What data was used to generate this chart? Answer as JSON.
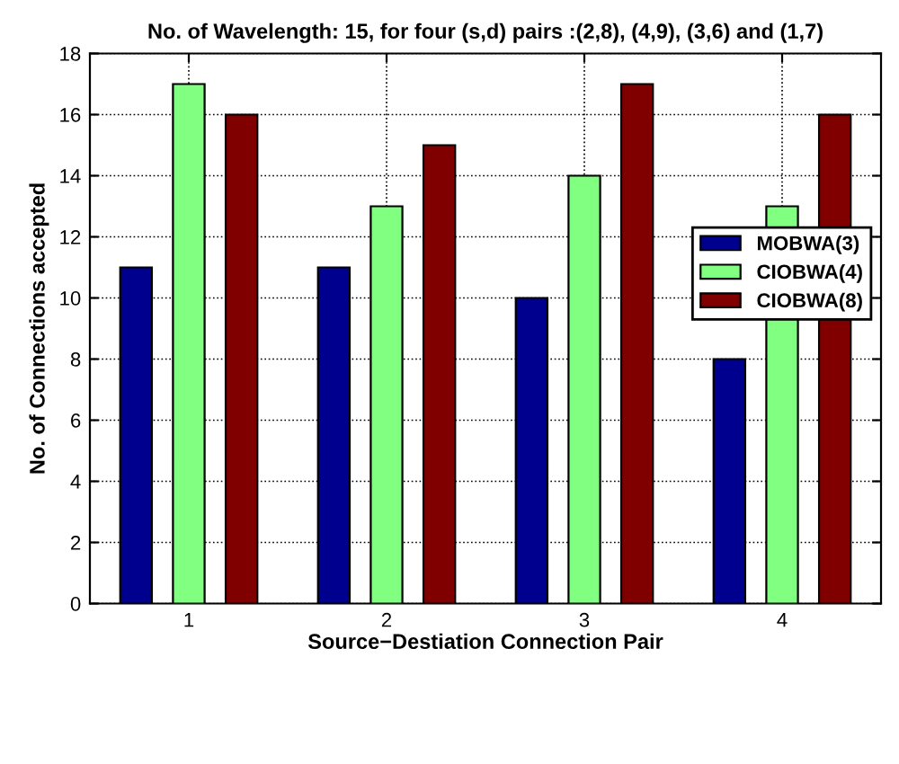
{
  "chart_data": {
    "type": "bar",
    "title": "No. of Wavelength: 15, for four (s,d) pairs :(2,8), (4,9), (3,6) and (1,7)",
    "xlabel": "Source−Destiation Connection Pair",
    "ylabel": "No. of Connections accepted",
    "categories": [
      "1",
      "2",
      "3",
      "4"
    ],
    "series": [
      {
        "name": "MOBWA(3)",
        "color": "#00008f",
        "values": [
          11,
          11,
          10,
          8
        ]
      },
      {
        "name": "CIOBWA(4)",
        "color": "#80ff80",
        "values": [
          17,
          13,
          14,
          13
        ]
      },
      {
        "name": "CIOBWA(8)",
        "color": "#800000",
        "values": [
          16,
          15,
          17,
          16
        ]
      }
    ],
    "ylim": [
      0,
      18
    ],
    "yticks": [
      0,
      2,
      4,
      6,
      8,
      10,
      12,
      14,
      16,
      18
    ],
    "grid": true,
    "legend": "right"
  }
}
